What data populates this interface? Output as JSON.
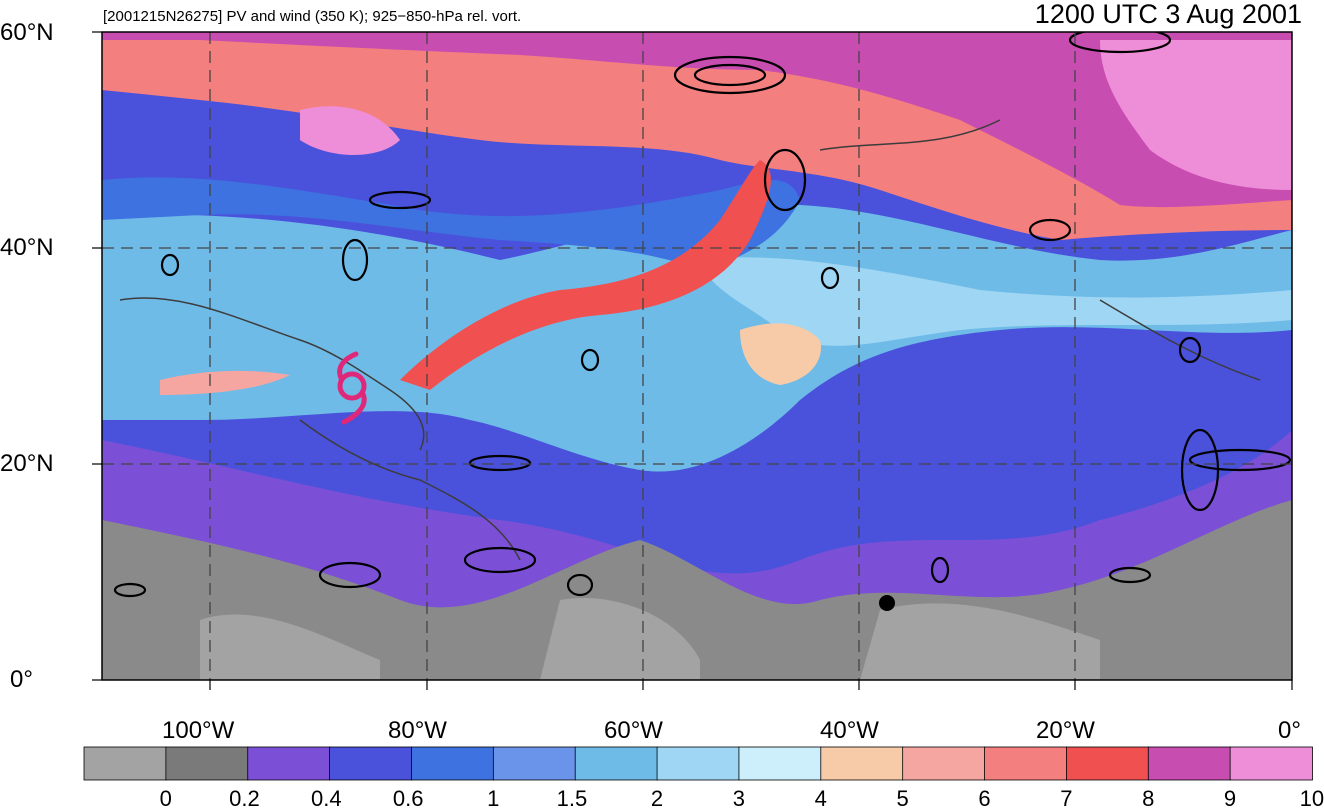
{
  "header": {
    "left_title": "[2001215N26275] PV and wind (350 K); 925−850-hPa rel. vort.",
    "right_title": "1200 UTC 3 Aug 2001"
  },
  "axes": {
    "lat_labels": [
      "60°N",
      "40°N",
      "20°N",
      "0°"
    ],
    "lon_labels": [
      "100°W",
      "80°W",
      "60°W",
      "40°W",
      "20°W",
      "0°"
    ]
  },
  "colorbar": {
    "labels": [
      "0",
      "0.2",
      "0.4",
      "0.6",
      "1",
      "1.5",
      "2",
      "3",
      "4",
      "5",
      "6",
      "7",
      "8",
      "9",
      "10"
    ],
    "colors": [
      "#a3a3a3",
      "#7a7a7a",
      "#7b4fd6",
      "#4a52dc",
      "#3e72e0",
      "#6a93ea",
      "#6fbbe8",
      "#9ed6f3",
      "#cdeefb",
      "#f8cba8",
      "#f6a6a0",
      "#f47f7f",
      "#f0504f",
      "#c84db0",
      "#ee8ed8"
    ]
  },
  "storm_marker": {
    "color": "#e0287a",
    "icon": "tropical-cyclone-symbol"
  }
}
